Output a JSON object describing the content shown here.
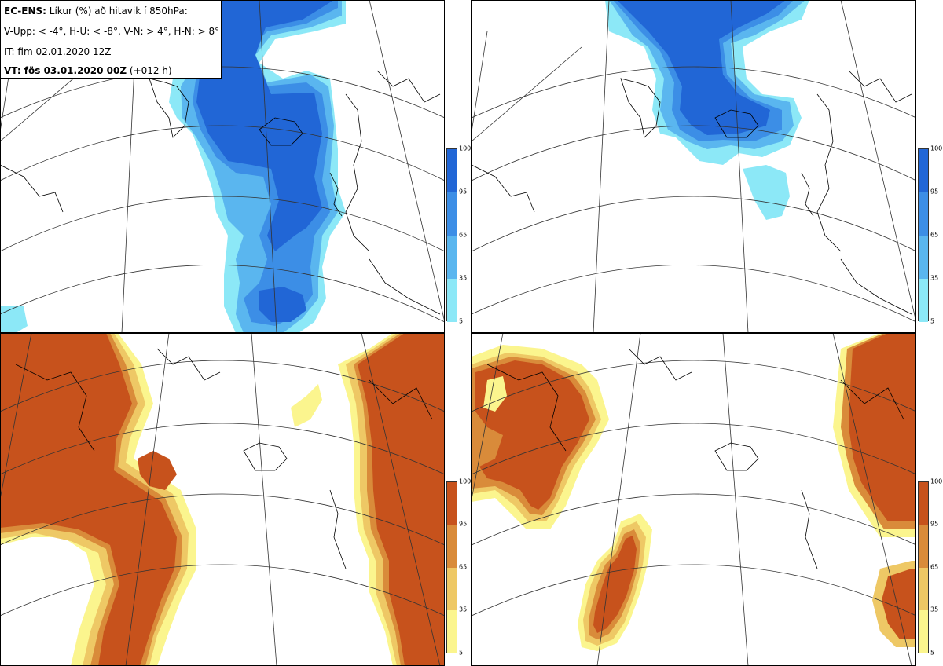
{
  "legend": {
    "model": "EC-ENS:",
    "title_rest": " Líkur (%) að hitavik í 850hPa:",
    "thresholds": "V-Upp: < -4°, H-U: < -8°, V-N: > 4°, H-N: > 8°",
    "init_time": "IT: fim 02.01.2020 12Z",
    "valid_label": "VT: fös 03.01.2020 00Z",
    "valid_offset": " (+012 h)"
  },
  "colorbars": {
    "cold": {
      "ticks": [
        "100",
        "95",
        "65",
        "35",
        "5"
      ],
      "colors": [
        "#2166d6",
        "#3c8ee6",
        "#5ab6ef",
        "#8ce8f7"
      ]
    },
    "warm": {
      "ticks": [
        "100",
        "95",
        "65",
        "35",
        "5"
      ],
      "colors": [
        "#c7521c",
        "#d98b3a",
        "#eec865",
        "#fbf58e"
      ]
    }
  },
  "panels": {
    "top_left": "V-Upp",
    "top_right": "H-U",
    "bottom_left": "V-N",
    "bottom_right": "H-N"
  }
}
